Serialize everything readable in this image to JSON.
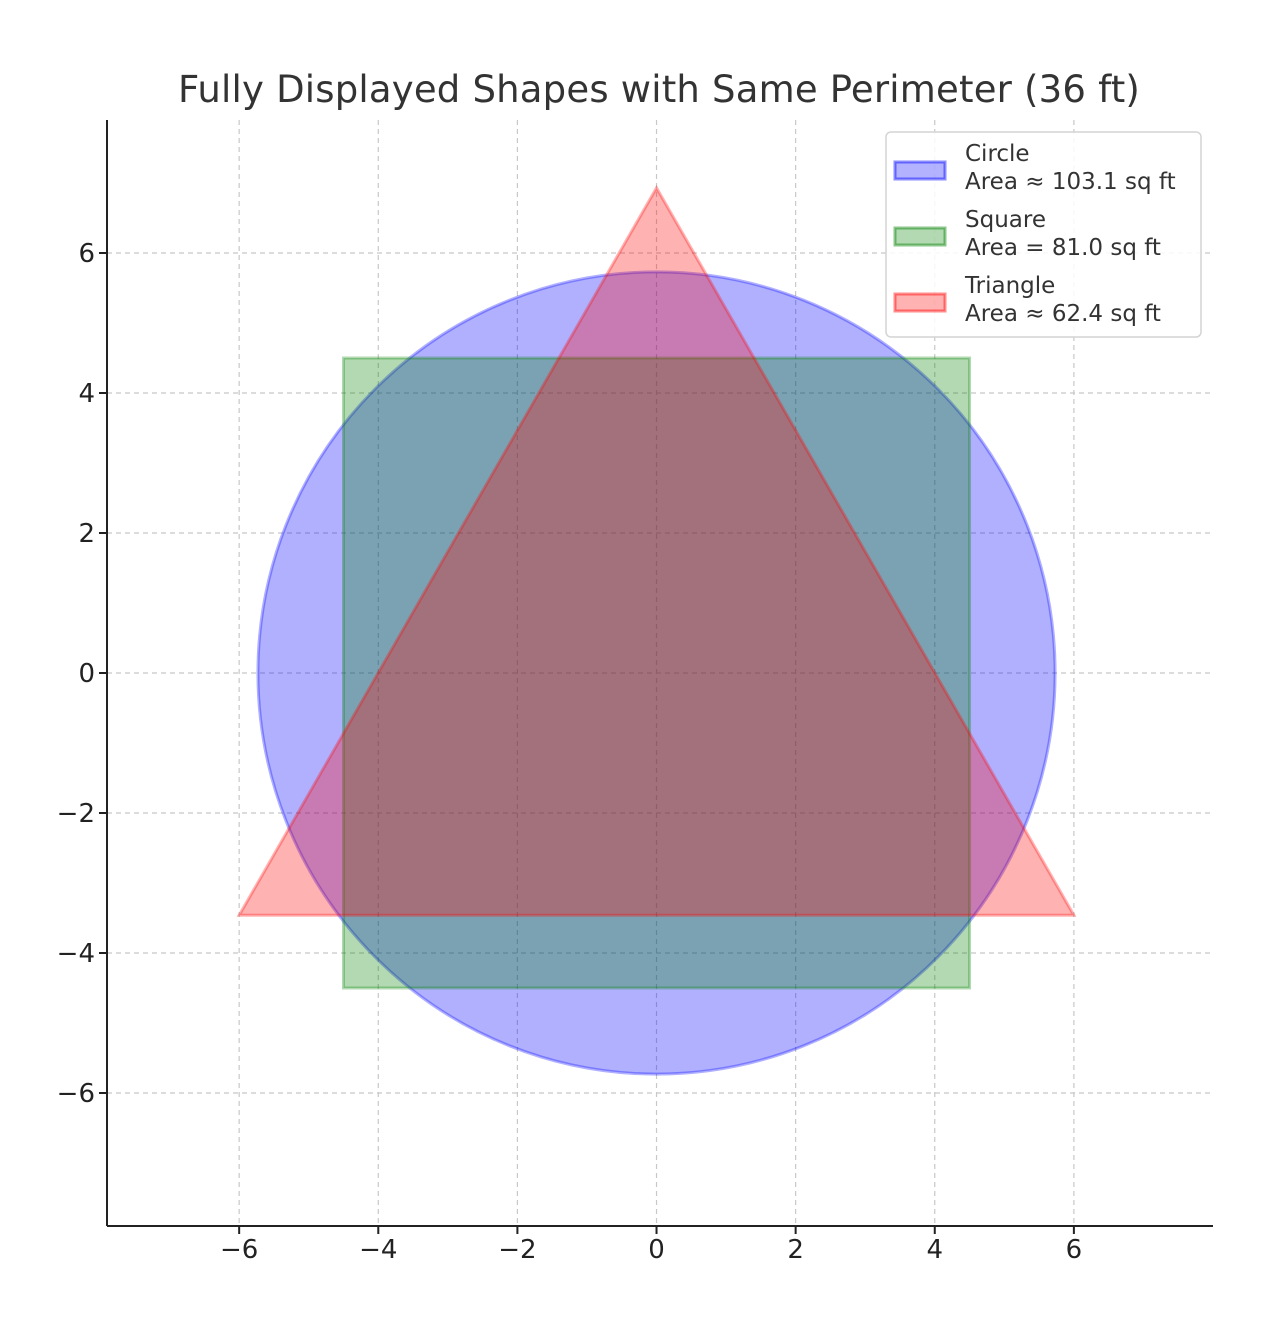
{
  "chart_data": {
    "type": "area",
    "title": "Fully Displayed Shapes with Same Perimeter (36 ft)",
    "xlabel": "",
    "ylabel": "",
    "xlim": [
      -7.9,
      8.0
    ],
    "ylim": [
      -7.9,
      7.9
    ],
    "xticks": [
      -6,
      -4,
      -2,
      0,
      2,
      4,
      6
    ],
    "yticks": [
      -6,
      -4,
      -2,
      0,
      2,
      4,
      6
    ],
    "xtick_labels": [
      "−6",
      "−4",
      "−2",
      "0",
      "2",
      "4",
      "6"
    ],
    "ytick_labels": [
      "−6",
      "−4",
      "−2",
      "0",
      "2",
      "4",
      "6"
    ],
    "grid": true,
    "legend_position": "top-right",
    "series": [
      {
        "name": "Circle",
        "area_label": "Area ≈ 103.1 sq ft",
        "shape": "circle",
        "center": [
          0,
          0
        ],
        "radius": 5.73,
        "color": "#0000ff"
      },
      {
        "name": "Square",
        "area_label": "Area = 81.0 sq ft",
        "shape": "polygon",
        "points": [
          [
            -4.5,
            -4.5
          ],
          [
            4.5,
            -4.5
          ],
          [
            4.5,
            4.5
          ],
          [
            -4.5,
            4.5
          ]
        ],
        "color": "#008000"
      },
      {
        "name": "Triangle",
        "area_label": "Area ≈ 62.4 sq ft",
        "shape": "polygon",
        "points": [
          [
            -6,
            -3.46
          ],
          [
            6,
            -3.46
          ],
          [
            0,
            6.93
          ]
        ],
        "color": "#ff0000"
      }
    ]
  }
}
